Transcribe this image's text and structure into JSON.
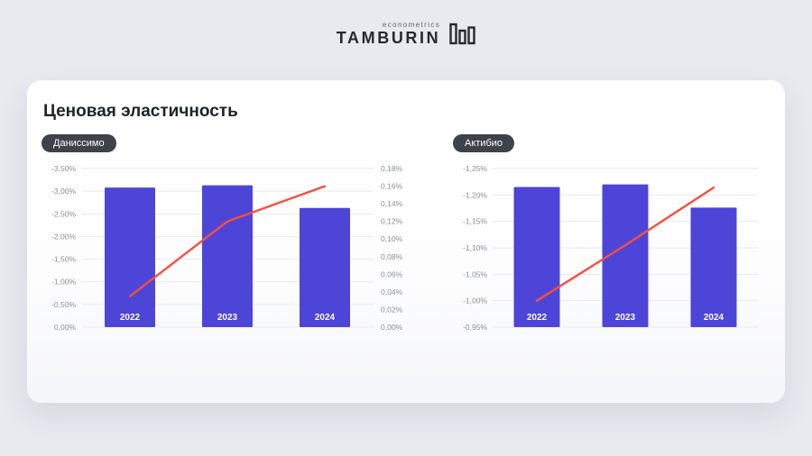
{
  "logo": {
    "top_text": "econometrics",
    "brand": "TAMBURIN"
  },
  "card": {
    "title": "Ценовая эластичность"
  },
  "chart_data": [
    {
      "type": "bar",
      "badge": "Даниссимо",
      "categories": [
        "2022",
        "2023",
        "2024"
      ],
      "series": [
        {
          "name": "elasticity-bars",
          "kind": "bar",
          "axis": "left",
          "values": [
            -3.08,
            -3.13,
            -2.63
          ]
        },
        {
          "name": "trend-line",
          "kind": "line",
          "axis": "right",
          "values": [
            0.035,
            0.12,
            0.16
          ]
        }
      ],
      "left_axis": {
        "bottom": 0,
        "top": -3.5,
        "tick_labels_top_to_bottom": [
          "-3,50%",
          "-3,00%",
          "-2,50%",
          "-2,00%",
          "-1,50%",
          "-1,00%",
          "-0,50%",
          "0,00%"
        ]
      },
      "right_axis": {
        "bottom": 0,
        "top": 0.18,
        "tick_labels_top_to_bottom": [
          "0,18%",
          "0,16%",
          "0,14%",
          "0,12%",
          "0,10%",
          "0,08%",
          "0,06%",
          "0,04%",
          "0,02%",
          "0,00%"
        ]
      },
      "bar_color": "#4d45d8",
      "line_color": "#f94f3d",
      "grid": true,
      "legend": "none"
    },
    {
      "type": "bar",
      "badge": "Актибио",
      "categories": [
        "2022",
        "2023",
        "2024"
      ],
      "series": [
        {
          "name": "elasticity-bars",
          "kind": "bar",
          "axis": "left",
          "values": [
            -1.215,
            -1.22,
            -1.176
          ]
        },
        {
          "name": "trend-line",
          "kind": "line",
          "axis": "left",
          "values": [
            -1.0,
            -1.105,
            -1.214
          ]
        }
      ],
      "left_axis": {
        "bottom": -0.95,
        "top": -1.25,
        "tick_labels_top_to_bottom": [
          "-1,25%",
          "-1,20%",
          "-1,15%",
          "-1,10%",
          "-1,05%",
          "-1,00%",
          "-0,95%"
        ]
      },
      "bar_color": "#4d45d8",
      "line_color": "#f94f3d",
      "grid": true,
      "legend": "none"
    }
  ]
}
